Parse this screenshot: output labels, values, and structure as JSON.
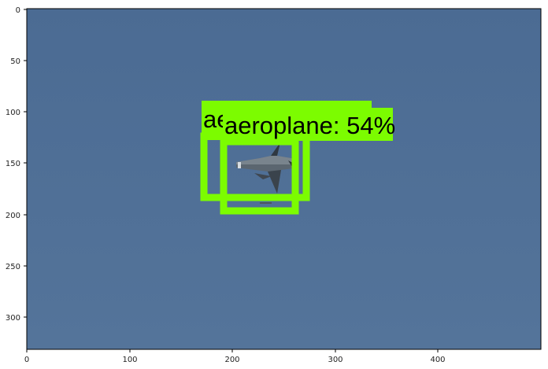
{
  "axes": {
    "x_ticks": [
      "0",
      "100",
      "200",
      "300",
      "400"
    ],
    "y_ticks": [
      "0",
      "50",
      "100",
      "150",
      "200",
      "250",
      "300"
    ],
    "x_range": [
      0,
      500
    ],
    "y_range": [
      333,
      0
    ],
    "y_inverted": true
  },
  "image": {
    "subject": "fighter jet",
    "sky_color": "#4f6f95",
    "box_color": "#7cfc00"
  },
  "detections": {
    "back": {
      "label": "ae"
    },
    "front": {
      "label": "aeroplane: 54%"
    }
  }
}
